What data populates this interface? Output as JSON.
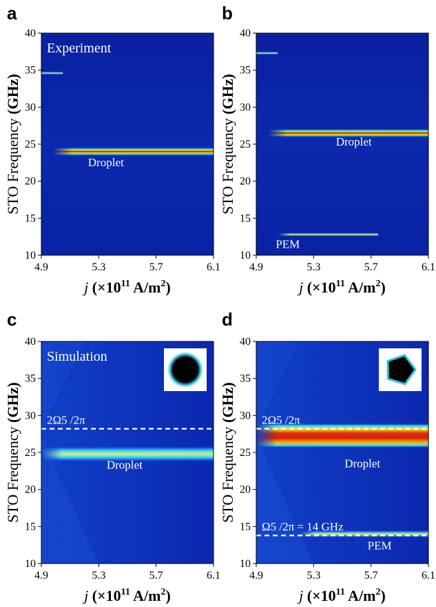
{
  "y_axis_label": "STO Frequency",
  "y_axis_unit": "(GHz)",
  "x_axis_label_italic": "j",
  "x_axis_unit_prefix": "(×10",
  "x_axis_unit_exp": "11",
  "x_axis_unit_mid": " A/m",
  "x_axis_unit_exp2": "2",
  "x_axis_unit_suffix": ")",
  "colors": {
    "background": "#0b25a8",
    "mid": "#20d0f0",
    "high": "#ffe000",
    "peak": "#b01008",
    "dashed": "#ffffff"
  },
  "chart_data": [
    {
      "type": "heatmap",
      "panel": "a",
      "inset_title": "Experiment",
      "xlim": [
        4.9,
        6.1
      ],
      "ylim": [
        10,
        40
      ],
      "x_ticks": [
        "4.9",
        "5.3",
        "5.7",
        "6.1"
      ],
      "y_ticks": [
        "10",
        "15",
        "20",
        "25",
        "30",
        "35",
        "40"
      ],
      "bands": [
        {
          "x_start": 4.98,
          "x_end": 6.1,
          "freq": 24.0,
          "intensity": "high",
          "label": "Droplet"
        },
        {
          "x_start": 4.9,
          "x_end": 5.05,
          "freq": 34.6,
          "intensity": "low"
        }
      ],
      "annotations": [
        "Droplet"
      ]
    },
    {
      "type": "heatmap",
      "panel": "b",
      "xlim": [
        4.9,
        6.1
      ],
      "ylim": [
        10,
        40
      ],
      "x_ticks": [
        "4.9",
        "5.3",
        "5.7",
        "6.1"
      ],
      "y_ticks": [
        "10",
        "15",
        "20",
        "25",
        "30",
        "35",
        "40"
      ],
      "bands": [
        {
          "x_start": 4.98,
          "x_end": 6.1,
          "freq": 26.5,
          "intensity": "high",
          "label": "Droplet"
        },
        {
          "x_start": 5.05,
          "x_end": 5.75,
          "freq": 12.8,
          "intensity": "medium",
          "label": "PEM"
        },
        {
          "x_start": 4.9,
          "x_end": 5.05,
          "freq": 37.3,
          "intensity": "low"
        }
      ],
      "annotations": [
        "Droplet",
        "PEM"
      ]
    },
    {
      "type": "heatmap",
      "panel": "c",
      "inset_title": "Simulation",
      "xlim": [
        4.9,
        6.1
      ],
      "ylim": [
        10,
        40
      ],
      "x_ticks": [
        "4.9",
        "5.3",
        "5.7",
        "6.1"
      ],
      "y_ticks": [
        "10",
        "15",
        "20",
        "25",
        "30",
        "35",
        "40"
      ],
      "bands": [
        {
          "x_start": 4.9,
          "x_end": 6.1,
          "freq": 24.8,
          "intensity": "high",
          "label": "Droplet"
        }
      ],
      "dashed_lines": [
        {
          "freq": 28.2,
          "label": "2Ω5 /2π"
        }
      ],
      "inset_shape": "circle",
      "annotations": [
        "Droplet"
      ]
    },
    {
      "type": "heatmap",
      "panel": "d",
      "xlim": [
        4.9,
        6.1
      ],
      "ylim": [
        10,
        40
      ],
      "x_ticks": [
        "4.9",
        "5.3",
        "5.7",
        "6.1"
      ],
      "y_ticks": [
        "10",
        "15",
        "20",
        "25",
        "30",
        "35",
        "40"
      ],
      "bands": [
        {
          "x_start": 4.9,
          "x_end": 6.1,
          "freq": 27.3,
          "intensity": "peak",
          "label": "Droplet"
        },
        {
          "x_start": 5.2,
          "x_end": 6.1,
          "freq": 14.0,
          "intensity": "medium",
          "label": "PEM"
        }
      ],
      "dashed_lines": [
        {
          "freq": 28.2,
          "label": "2Ω5 /2π"
        },
        {
          "freq": 13.8,
          "label": "Ω5 /2π = 14 GHz"
        }
      ],
      "inset_shape": "pentagon",
      "annotations": [
        "Droplet",
        "PEM"
      ]
    }
  ]
}
